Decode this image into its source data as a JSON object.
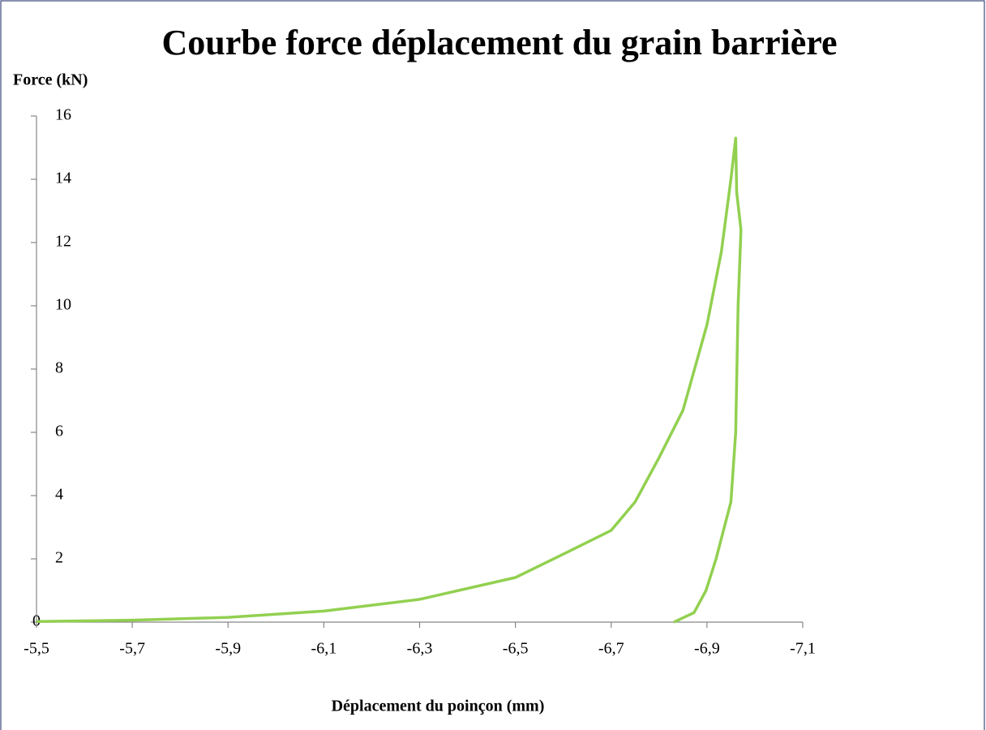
{
  "chart_data": {
    "type": "line",
    "title": "Courbe force déplacement du grain barrière",
    "y_label": "Force (kN)",
    "x_label": "Déplacement du poinçon (mm)",
    "color": "#92d050",
    "x": [
      -5.5,
      -5.7,
      -5.9,
      -6.1,
      -6.3,
      -6.5,
      -6.6,
      -6.7,
      -6.75,
      -6.8,
      -6.85,
      -6.9,
      -6.93,
      -6.95,
      -6.96,
      -6.962,
      -6.971,
      -6.965,
      -6.96,
      -6.95,
      -6.919,
      -6.898,
      -6.873,
      -6.831
    ],
    "values": [
      0.02,
      0.06,
      0.15,
      0.35,
      0.72,
      1.41,
      2.15,
      2.9,
      3.8,
      5.2,
      6.7,
      9.4,
      11.7,
      14.0,
      15.3,
      13.6,
      12.4,
      10,
      6,
      3.8,
      2,
      1,
      0.3,
      0
    ],
    "xlim": [
      -5.5,
      -7.1
    ],
    "xticks": [
      {
        "value": -5.5,
        "label": "-5,5"
      },
      {
        "value": -5.7,
        "label": "-5,7"
      },
      {
        "value": -5.9,
        "label": "-5,9"
      },
      {
        "value": -6.1,
        "label": "-6,1"
      },
      {
        "value": -6.3,
        "label": "-6,3"
      },
      {
        "value": -6.5,
        "label": "-6,5"
      },
      {
        "value": -6.7,
        "label": "-6,7"
      },
      {
        "value": -6.9,
        "label": "-6,9"
      },
      {
        "value": -7.1,
        "label": "-7,1"
      }
    ],
    "ylim": [
      0,
      16
    ],
    "yticks": [
      0,
      2,
      4,
      6,
      8,
      10,
      12,
      14,
      16
    ]
  }
}
